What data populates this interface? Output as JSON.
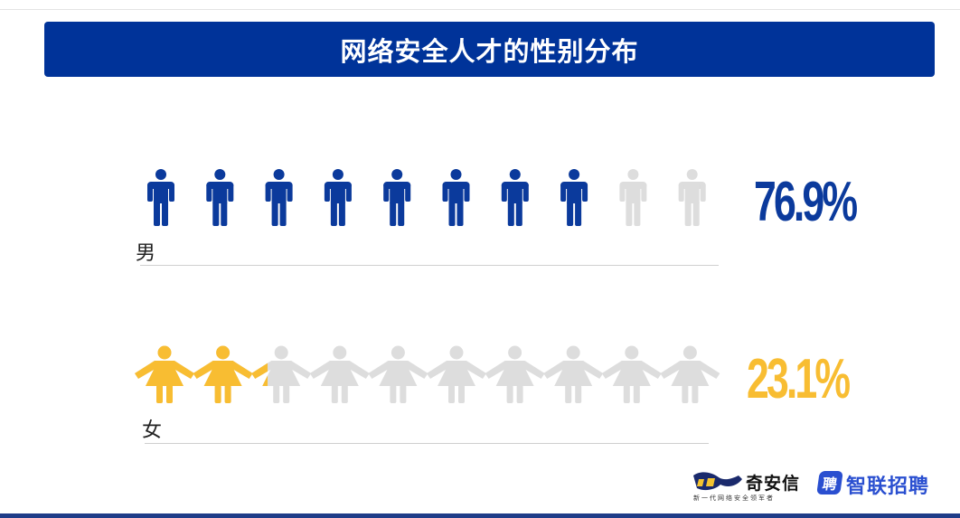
{
  "title": "网络安全人才的性别分布",
  "colors": {
    "title_bg": "#003399",
    "male": "#0b3a9c",
    "female": "#f8bd32",
    "inactive": "#dddddd"
  },
  "chart_data": {
    "type": "pictograph",
    "title": "网络安全人才的性别分布",
    "icons_per_row": 10,
    "categories": [
      "男",
      "女"
    ],
    "values": [
      76.9,
      23.1
    ],
    "unit": "%",
    "series": [
      {
        "name": "男",
        "value": 76.9,
        "label": "76.9%",
        "icon": "male-person-icon",
        "color": "#0b3a9c"
      },
      {
        "name": "女",
        "value": 23.1,
        "label": "23.1%",
        "icon": "female-person-icon",
        "color": "#f8bd32"
      }
    ]
  },
  "logos": {
    "qianxin_name": "奇安信",
    "qianxin_slogan": "新一代网络安全领军者",
    "zhaopin_mark": "聘",
    "zhaopin_name": "智联招聘"
  }
}
